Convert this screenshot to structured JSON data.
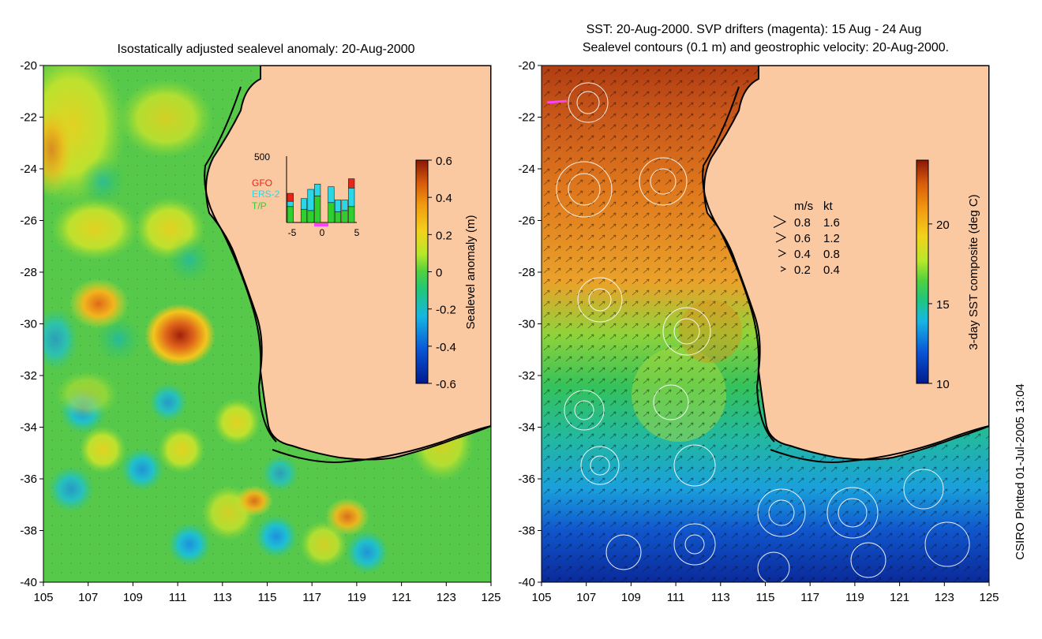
{
  "chart_data": [
    {
      "type": "heatmap",
      "title": "Isostatically adjusted sealevel anomaly: 20-Aug-2000",
      "xlabel": "",
      "ylabel": "",
      "xlim": [
        105,
        125
      ],
      "ylim": [
        -40,
        -20
      ],
      "x_ticks": [
        "105",
        "107",
        "109",
        "111",
        "113",
        "115",
        "117",
        "119",
        "121",
        "123",
        "125"
      ],
      "y_ticks": [
        "-20",
        "-22",
        "-24",
        "-26",
        "-28",
        "-30",
        "-32",
        "-34",
        "-36",
        "-38",
        "-40"
      ],
      "colorbar": {
        "label": "Sealevel anomaly (m)",
        "range": [
          -0.6,
          0.6
        ],
        "ticks": [
          "0.6",
          "0.4",
          "0.2",
          "0",
          "-0.2",
          "-0.4",
          "-0.6"
        ]
      },
      "features": [
        {
          "lon": 111.2,
          "lat": -30.5,
          "value": 0.55
        },
        {
          "lon": 107.5,
          "lat": -29.3,
          "value": 0.35
        },
        {
          "lon": 118.8,
          "lat": -37.5,
          "value": 0.3
        },
        {
          "lon": 115.0,
          "lat": -38.4,
          "value": -0.4
        },
        {
          "lon": 111.0,
          "lat": -38.8,
          "value": -0.35
        }
      ],
      "inset_histogram": {
        "ymax_label": "500",
        "legend": [
          "GFO",
          "ERS-2",
          "T/P"
        ],
        "legend_colors": [
          "#e8251b",
          "#2ad7e6",
          "#2fcf2f"
        ],
        "x_ticks": [
          "-5",
          "0",
          "5"
        ],
        "bins": [
          -5,
          -4,
          -3,
          -2,
          -1,
          0,
          1,
          2,
          3,
          4
        ],
        "series": [
          {
            "name": "T/P",
            "values": [
              120,
              0,
              100,
              90,
              200,
              0,
              150,
              80,
              90,
              120
            ]
          },
          {
            "name": "ERS-2",
            "values": [
              40,
              0,
              80,
              160,
              90,
              0,
              120,
              90,
              80,
              140
            ]
          },
          {
            "name": "GFO",
            "values": [
              60,
              0,
              0,
              0,
              0,
              0,
              0,
              0,
              0,
              70
            ]
          }
        ]
      }
    },
    {
      "type": "heatmap",
      "title": "SST: 20-Aug-2000. SVP drifters (magenta): 15 Aug - 24 Aug",
      "subtitle": "Sealevel contours (0.1 m) and geostrophic velocity: 20-Aug-2000.",
      "xlabel": "",
      "ylabel": "",
      "xlim": [
        105,
        125
      ],
      "ylim": [
        -40,
        -20
      ],
      "x_ticks": [
        "105",
        "107",
        "109",
        "111",
        "113",
        "115",
        "117",
        "119",
        "121",
        "123",
        "125"
      ],
      "y_ticks": [
        "-20",
        "-22",
        "-24",
        "-26",
        "-28",
        "-30",
        "-32",
        "-34",
        "-36",
        "-38",
        "-40"
      ],
      "colorbar": {
        "label": "3-day SST composite (deg C)",
        "range": [
          10,
          24
        ],
        "ticks": [
          "20",
          "15",
          "10"
        ]
      },
      "velocity_legend": {
        "header_ms": "m/s",
        "header_kt": "kt",
        "rows": [
          {
            "ms": "0.8",
            "kt": "1.6"
          },
          {
            "ms": "0.6",
            "kt": "1.2"
          },
          {
            "ms": "0.4",
            "kt": "0.8"
          },
          {
            "ms": "0.2",
            "kt": "0.4"
          }
        ]
      }
    }
  ],
  "footer": {
    "credit": "CSIRO Plotted 01-Jul-2005 13:04"
  }
}
